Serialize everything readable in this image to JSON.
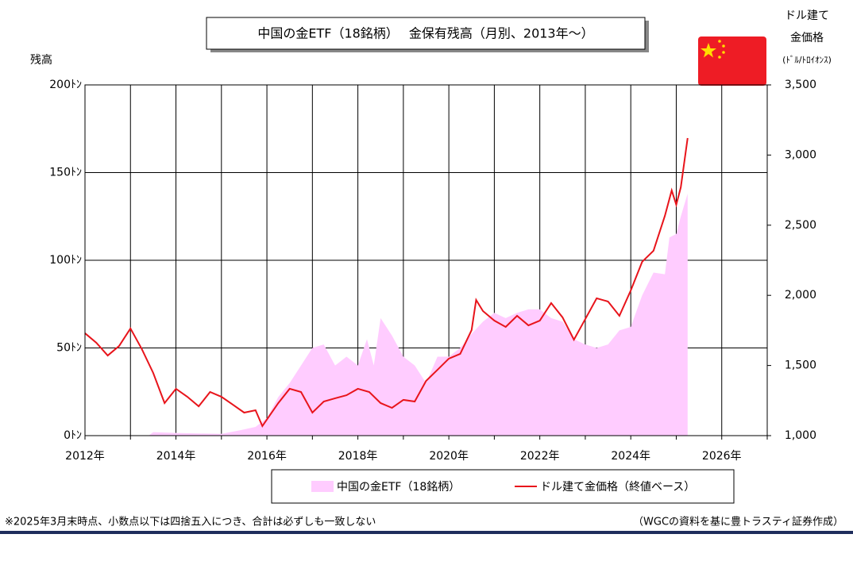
{
  "chart_data": {
    "type": "area-line",
    "title": "中国の金ETF（18銘柄）　 金保有残高（月別、2013年～）",
    "ylabel": "残高",
    "y2label": [
      "ドル建て",
      "金価格",
      "(ﾄﾞﾙ/ﾄﾛｲｵﾝｽ)"
    ],
    "xlim": [
      2012,
      2027
    ],
    "xticks": [
      {
        "value": 2012,
        "label": "2012年"
      },
      {
        "value": 2014,
        "label": "2014年"
      },
      {
        "value": 2016,
        "label": "2016年"
      },
      {
        "value": 2018,
        "label": "2018年"
      },
      {
        "value": 2020,
        "label": "2020年"
      },
      {
        "value": 2022,
        "label": "2022年"
      },
      {
        "value": 2024,
        "label": "2024年"
      },
      {
        "value": 2026,
        "label": "2026年"
      }
    ],
    "xgrid": [
      2013,
      2015,
      2017,
      2019,
      2021,
      2023,
      2025,
      2027
    ],
    "ylim": [
      0,
      200
    ],
    "yticks": [
      {
        "value": 0,
        "label": "0ﾄﾝ"
      },
      {
        "value": 50,
        "label": "50ﾄﾝ"
      },
      {
        "value": 100,
        "label": "100ﾄﾝ"
      },
      {
        "value": 150,
        "label": "150ﾄﾝ"
      },
      {
        "value": 200,
        "label": "200ﾄﾝ"
      }
    ],
    "y2lim": [
      1000,
      3500
    ],
    "y2ticks": [
      {
        "value": 1000,
        "label": "1,000"
      },
      {
        "value": 1500,
        "label": "1,500"
      },
      {
        "value": 2000,
        "label": "2,000"
      },
      {
        "value": 2500,
        "label": "2,500"
      },
      {
        "value": 3000,
        "label": "3,000"
      },
      {
        "value": 3500,
        "label": "3,500"
      }
    ],
    "grid": true,
    "series": [
      {
        "name": "中国の金ETF（18銘柄）",
        "color": "#ffccff",
        "kind": "area",
        "x": [
          2012,
          2013.4,
          2013.5,
          2014,
          2015,
          2015.4,
          2015.75,
          2016,
          2016.25,
          2016.5,
          2016.75,
          2017,
          2017.25,
          2017.5,
          2017.75,
          2018,
          2018.2,
          2018.35,
          2018.5,
          2018.75,
          2019,
          2019.25,
          2019.5,
          2019.75,
          2020,
          2020.25,
          2020.5,
          2020.75,
          2021,
          2021.25,
          2021.5,
          2021.75,
          2022,
          2022.25,
          2022.5,
          2022.75,
          2023,
          2023.25,
          2023.5,
          2023.75,
          2024,
          2024.25,
          2024.5,
          2024.75,
          2024.85,
          2025,
          2025.1,
          2025.25
        ],
        "values": [
          0,
          0,
          2,
          1.5,
          1,
          3,
          5,
          10,
          22,
          30,
          40,
          50,
          52,
          40,
          45,
          40,
          55,
          40,
          67,
          57,
          45,
          40,
          30,
          45,
          45,
          50,
          58,
          65,
          70,
          67,
          70,
          72,
          72,
          67,
          65,
          55,
          52,
          50,
          52,
          60,
          62,
          80,
          93,
          92,
          113,
          115,
          125,
          138
        ]
      },
      {
        "name": "ドル建て金価格（終値ベース）",
        "color": "#e8141b",
        "kind": "line",
        "axis": "y2",
        "x": [
          2012,
          2012.25,
          2012.5,
          2012.75,
          2013,
          2013.25,
          2013.5,
          2013.75,
          2014,
          2014.25,
          2014.5,
          2014.75,
          2015,
          2015.25,
          2015.5,
          2015.75,
          2015.9,
          2016.25,
          2016.5,
          2016.75,
          2017,
          2017.25,
          2017.5,
          2017.75,
          2018,
          2018.25,
          2018.5,
          2018.75,
          2019,
          2019.25,
          2019.5,
          2019.75,
          2020,
          2020.25,
          2020.5,
          2020.6,
          2020.75,
          2021,
          2021.25,
          2021.5,
          2021.75,
          2022,
          2022.25,
          2022.5,
          2022.75,
          2023,
          2023.25,
          2023.5,
          2023.75,
          2024,
          2024.25,
          2024.5,
          2024.75,
          2024.9,
          2025,
          2025.1,
          2025.25
        ],
        "values": [
          1730,
          1662,
          1571,
          1639,
          1764,
          1617,
          1447,
          1232,
          1334,
          1277,
          1209,
          1311,
          1277,
          1221,
          1164,
          1181,
          1068,
          1232,
          1334,
          1311,
          1164,
          1243,
          1266,
          1288,
          1334,
          1311,
          1232,
          1198,
          1255,
          1243,
          1390,
          1469,
          1549,
          1583,
          1752,
          1967,
          1888,
          1820,
          1775,
          1854,
          1786,
          1820,
          1945,
          1843,
          1684,
          1831,
          1979,
          1956,
          1854,
          2035,
          2239,
          2318,
          2567,
          2748,
          2646,
          2770,
          3121
        ]
      }
    ],
    "note": "※2025年3月末時点、小数点以下は四捨五入につき、合計は必ずしも一致しない",
    "source": "（WGCの資料を基に豊トラスティ証券作成）"
  }
}
